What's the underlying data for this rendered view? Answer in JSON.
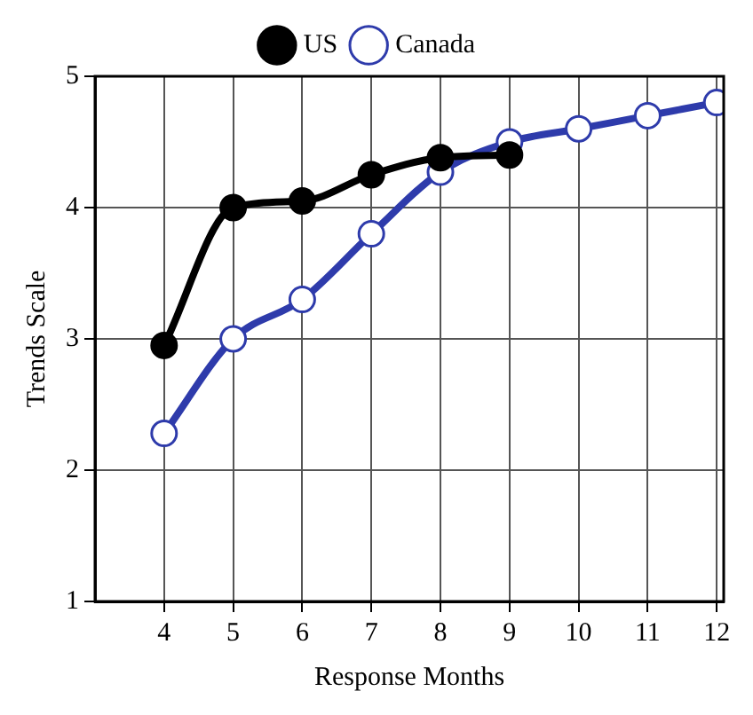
{
  "chart_data": {
    "type": "line",
    "xlabel": "Response Months",
    "ylabel": "Trends Scale",
    "xlim": [
      3,
      12.1
    ],
    "xticks": [
      4,
      5,
      6,
      7,
      8,
      9,
      10,
      11,
      12
    ],
    "ylim": [
      1,
      5
    ],
    "yticks": [
      1,
      2,
      3,
      4,
      5
    ],
    "grid": true,
    "legend": "top",
    "marker": "circle",
    "line_style": "solid",
    "series": [
      {
        "name": "US",
        "color": "#000000",
        "x": [
          4,
          5,
          6,
          7,
          8,
          9
        ],
        "values": [
          2.95,
          4.0,
          4.05,
          4.25,
          4.38,
          4.4
        ]
      },
      {
        "name": "Canada",
        "color": "#2e3bab",
        "x": [
          4,
          5,
          6,
          7,
          8,
          9,
          10,
          11,
          12
        ],
        "values": [
          2.28,
          3.0,
          3.3,
          3.8,
          4.27,
          4.5,
          4.6,
          4.7,
          4.8
        ]
      }
    ]
  }
}
